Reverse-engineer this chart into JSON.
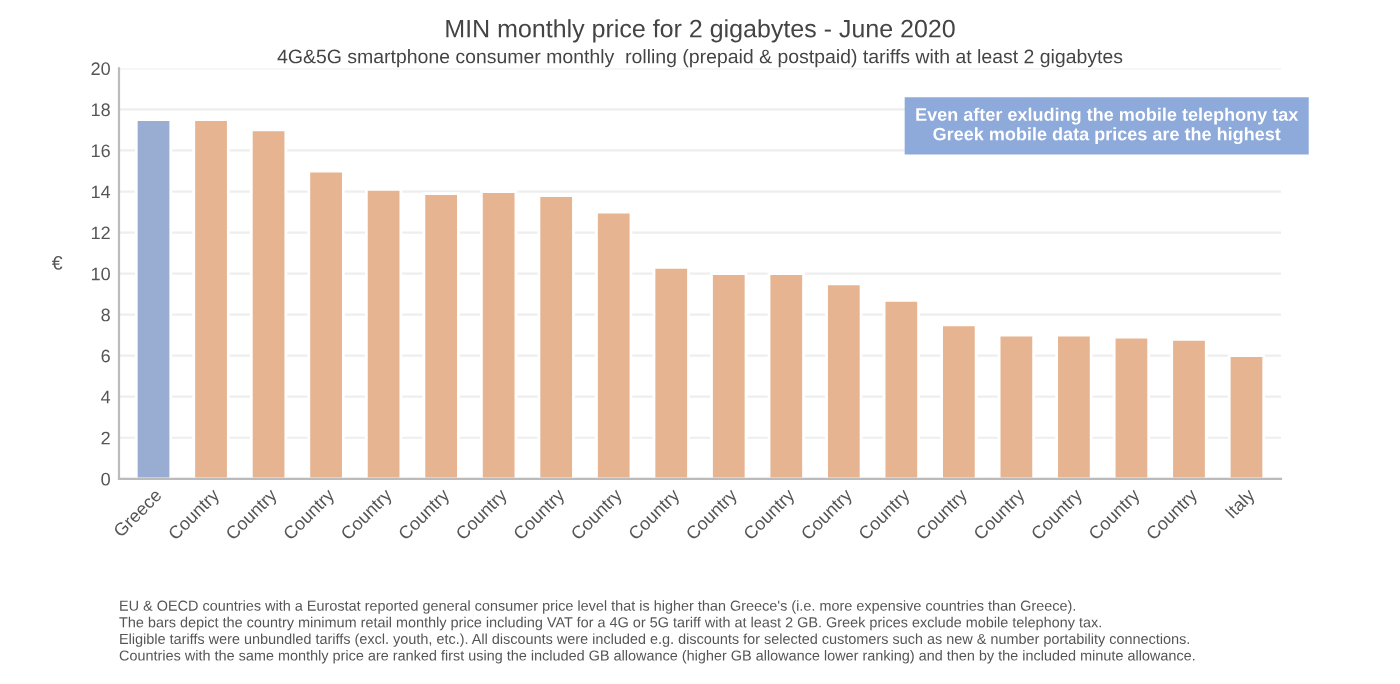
{
  "chart_data": {
    "type": "bar",
    "title": "MIN monthly price for 2 gigabytes - June 2020",
    "subtitle": "4G&5G smartphone consumer monthly  rolling (prepaid & postpaid) tariffs with at least 2 gigabytes",
    "ylabel": "€",
    "categories": [
      "Greece",
      "Country",
      "Country",
      "Country",
      "Country",
      "Country",
      "Country",
      "Country",
      "Country",
      "Country",
      "Country",
      "Country",
      "Country",
      "Country",
      "Country",
      "Country",
      "Country",
      "Country",
      "Country",
      "Italy"
    ],
    "values": [
      17.5,
      17.5,
      17.0,
      15.0,
      14.1,
      13.9,
      14.0,
      13.8,
      13.0,
      10.3,
      10.0,
      10.0,
      9.5,
      8.7,
      7.5,
      7.0,
      7.0,
      6.9,
      6.8,
      6.0
    ],
    "colors": [
      "#8eaadb",
      "#f4b183",
      "#f4b183",
      "#f4b183",
      "#f4b183",
      "#f4b183",
      "#f4b183",
      "#f4b183",
      "#f4b183",
      "#f4b183",
      "#f4b183",
      "#f4b183",
      "#f4b183",
      "#f4b183",
      "#f4b183",
      "#f4b183",
      "#f4b183",
      "#f4b183",
      "#f4b183",
      "#f4b183"
    ],
    "ylim": [
      0,
      20
    ],
    "yticks": [
      0,
      2,
      4,
      6,
      8,
      10,
      12,
      14,
      16,
      18,
      20
    ],
    "grid": "y",
    "annotations": [
      "Even after exluding the mobile telephony tax\nGreek mobile data prices are the highest",
      "EU & OECD countries with a Eurostat reported general consumer price level that is higher than Greece's (i.e. more expensive countries than Greece).\nThe bars depict the country minimum retail monthly price including VAT for a 4G or 5G tariff with at least 2 GB. Greek prices exclude mobile telephony tax.\nEligible tariffs were unbundled tariffs (excl. youth, etc.). All discounts were included e.g. discounts for selected customers such as new & number portability connections.\nCountries with the same monthly price are ranked first using the included GB allowance (higher GB allowance lower ranking) and then by the included minute allowance."
    ]
  }
}
